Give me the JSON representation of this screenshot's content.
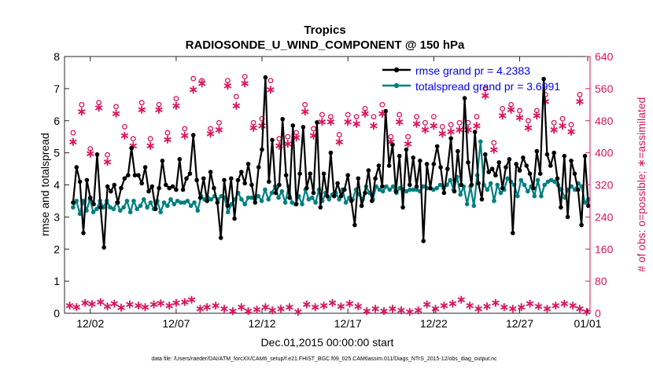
{
  "chart_data": {
    "type": "line",
    "title": "Tropics",
    "subtitle": "RADIOSONDE_U_WIND_COMPONENT @ 150 hPa",
    "xlabel": "Dec.01,2015 00:00:00 start",
    "ylabel_left": "rmse and totalspread",
    "ylabel_right": "# of obs: o=possible; ∗=assimilated",
    "footer": "data file: /Users/raeder/DAI/ATM_forcXX/CAM6_setup/f.e21.FHIST_BGC.f09_025.CAM6assim.011/Diags_NTrS_2015-12/obs_diag_output.nc",
    "xlim": [
      0.5,
      31.1
    ],
    "ylim_left": [
      0,
      8
    ],
    "ylim_right": [
      0,
      640
    ],
    "x_ticks": [
      2,
      7,
      12,
      17,
      22,
      27,
      32
    ],
    "x_tick_labels": [
      "12/02",
      "12/07",
      "12/12",
      "12/17",
      "12/22",
      "12/27",
      "01/01"
    ],
    "y_ticks_left": [
      0,
      1,
      2,
      3,
      4,
      5,
      6,
      7,
      8
    ],
    "y_ticks_right": [
      0,
      80,
      160,
      240,
      320,
      400,
      480,
      560,
      640
    ],
    "colors": {
      "rmse": "#000000",
      "spread": "#007f7f",
      "obs": "#d6155e",
      "legend_text": "#0000ff"
    },
    "series": [
      {
        "name": "rmse grand pr = 4.2383",
        "axis": "left",
        "values": [
          3.45,
          4.55,
          4.1,
          2.5,
          4.15,
          3.6,
          3.4,
          4.95,
          3.3,
          2.05,
          3.95,
          3.8,
          4.0,
          3.45,
          3.9,
          4.2,
          4.3,
          5.15,
          4.3,
          4.3,
          4.05,
          4.55,
          3.8,
          3.95,
          3.25,
          3.9,
          4.75,
          4.0,
          3.9,
          3.95,
          3.85,
          4.8,
          3.85,
          4.2,
          4.35,
          5.55,
          4.15,
          3.6,
          4.2,
          3.5,
          4.4,
          3.9,
          3.45,
          2.35,
          4.15,
          3.35,
          4.2,
          2.95,
          4.15,
          4.4,
          4.05,
          4.65,
          4.0,
          3.45,
          4.55,
          5.1,
          7.35,
          4.1,
          5.4,
          3.75,
          4.0,
          6.05,
          4.3,
          3.6,
          5.85,
          3.4,
          4.35,
          5.8,
          3.9,
          4.35,
          3.75,
          5.95,
          3.3,
          4.35,
          3.65,
          5.0,
          3.65,
          4.05,
          3.65,
          3.85,
          4.3,
          3.5,
          2.75,
          4.2,
          3.35,
          3.75,
          4.45,
          3.5,
          4.2,
          4.6,
          3.95,
          6.3,
          4.6,
          5.25,
          3.8,
          4.9,
          3.3,
          5.1,
          4.0,
          4.85,
          3.95,
          4.75,
          2.25,
          4.65,
          3.9,
          4.65,
          5.2,
          4.55,
          3.75,
          4.5,
          5.45,
          3.8,
          5.05,
          4.0,
          6.7,
          4.7,
          4.0,
          5.65,
          4.05,
          3.55,
          4.95,
          4.4,
          4.5,
          4.3,
          4.7,
          3.9,
          4.55,
          4.8,
          2.5,
          4.65,
          4.45,
          4.85,
          4.6,
          4.35,
          3.9,
          5.05,
          4.35,
          7.3,
          4.95,
          4.6,
          5.0,
          4.2,
          3.3,
          4.9,
          3.0,
          4.75,
          4.35,
          3.85,
          2.75,
          4.9,
          3.35
        ]
      },
      {
        "name": "totalspread grand pr = 3.6991",
        "axis": "left",
        "values": [
          3.3,
          3.5,
          3.1,
          3.5,
          3.2,
          3.55,
          3.15,
          3.25,
          3.5,
          3.3,
          3.5,
          3.3,
          3.25,
          3.45,
          3.2,
          3.3,
          3.5,
          3.15,
          3.5,
          3.25,
          3.35,
          3.55,
          3.3,
          3.45,
          3.25,
          3.5,
          3.15,
          3.45,
          3.35,
          3.55,
          3.4,
          3.5,
          3.45,
          3.45,
          3.5,
          3.35,
          3.45,
          3.2,
          3.65,
          3.55,
          3.6,
          3.55,
          3.65,
          3.55,
          3.65,
          3.6,
          3.15,
          3.4,
          3.55,
          3.75,
          3.55,
          3.4,
          3.6,
          3.6,
          3.55,
          3.65,
          3.5,
          3.85,
          3.55,
          3.75,
          3.95,
          3.6,
          3.8,
          3.45,
          3.95,
          3.45,
          3.4,
          3.65,
          3.4,
          3.85,
          3.55,
          3.6,
          3.45,
          3.85,
          3.5,
          3.75,
          3.55,
          3.7,
          3.75,
          3.55,
          3.85,
          3.45,
          3.6,
          3.55,
          3.85,
          3.7,
          3.55,
          3.95,
          3.75,
          3.55,
          3.95,
          3.85,
          3.8,
          3.95,
          3.85,
          3.95,
          3.75,
          3.9,
          3.85,
          3.8,
          3.85,
          3.85,
          3.85,
          3.8,
          3.95,
          3.9,
          3.9,
          3.85,
          3.9,
          4.0,
          3.9,
          4.0,
          4.15,
          3.85,
          4.25,
          3.7,
          3.95,
          3.4,
          3.95,
          3.35,
          4.3,
          5.35,
          4.0,
          3.85,
          4.05,
          3.5,
          4.0,
          3.75,
          3.85,
          4.2,
          4.1,
          4.0,
          3.65,
          4.15,
          4.0,
          3.8,
          3.95,
          3.65,
          4.15,
          3.65,
          4.0,
          4.1,
          4.15,
          4.1,
          4.0,
          3.85,
          3.6,
          3.85,
          3.95,
          3.85,
          4.05,
          3.95,
          3.45,
          3.55
        ]
      }
    ],
    "obs_possible": [
      {
        "x": 1.0,
        "y": 450
      },
      {
        "x": 1.5,
        "y": 520
      },
      {
        "x": 2.0,
        "y": 410
      },
      {
        "x": 2.5,
        "y": 525
      },
      {
        "x": 3.0,
        "y": 395
      },
      {
        "x": 3.5,
        "y": 515
      },
      {
        "x": 4.0,
        "y": 465
      },
      {
        "x": 4.5,
        "y": 435
      },
      {
        "x": 5.0,
        "y": 525
      },
      {
        "x": 5.5,
        "y": 435
      },
      {
        "x": 6.0,
        "y": 520
      },
      {
        "x": 6.5,
        "y": 450
      },
      {
        "x": 7.0,
        "y": 535
      },
      {
        "x": 7.5,
        "y": 460
      },
      {
        "x": 8.0,
        "y": 585
      },
      {
        "x": 8.5,
        "y": 580
      },
      {
        "x": 9.0,
        "y": 460
      },
      {
        "x": 9.5,
        "y": 475
      },
      {
        "x": 10.0,
        "y": 580
      },
      {
        "x": 10.5,
        "y": 540
      },
      {
        "x": 11.0,
        "y": 590
      },
      {
        "x": 11.5,
        "y": 475
      },
      {
        "x": 12.0,
        "y": 485
      },
      {
        "x": 12.5,
        "y": 580
      },
      {
        "x": 13.0,
        "y": 435
      },
      {
        "x": 13.5,
        "y": 440
      },
      {
        "x": 14.0,
        "y": 450
      },
      {
        "x": 14.5,
        "y": 520
      },
      {
        "x": 15.0,
        "y": 460
      },
      {
        "x": 15.5,
        "y": 495
      },
      {
        "x": 16.0,
        "y": 490
      },
      {
        "x": 16.5,
        "y": 445
      },
      {
        "x": 17.0,
        "y": 495
      },
      {
        "x": 17.5,
        "y": 490
      },
      {
        "x": 18.0,
        "y": 510
      },
      {
        "x": 18.5,
        "y": 490
      },
      {
        "x": 19.0,
        "y": 520
      },
      {
        "x": 19.5,
        "y": 440
      },
      {
        "x": 20.0,
        "y": 495
      },
      {
        "x": 20.5,
        "y": 440
      },
      {
        "x": 21.0,
        "y": 490
      },
      {
        "x": 21.5,
        "y": 475
      },
      {
        "x": 22.0,
        "y": 490
      },
      {
        "x": 22.5,
        "y": 465
      },
      {
        "x": 23.0,
        "y": 470
      },
      {
        "x": 23.5,
        "y": 475
      },
      {
        "x": 24.0,
        "y": 475
      },
      {
        "x": 24.5,
        "y": 490
      },
      {
        "x": 25.0,
        "y": 560
      },
      {
        "x": 25.5,
        "y": 425
      },
      {
        "x": 26.0,
        "y": 510
      },
      {
        "x": 26.5,
        "y": 520
      },
      {
        "x": 27.0,
        "y": 505
      },
      {
        "x": 27.5,
        "y": 480
      },
      {
        "x": 28.0,
        "y": 505
      },
      {
        "x": 28.5,
        "y": 545
      },
      {
        "x": 29.0,
        "y": 475
      },
      {
        "x": 29.5,
        "y": 485
      },
      {
        "x": 30.0,
        "y": 470
      },
      {
        "x": 30.5,
        "y": 545
      }
    ],
    "obs_assimilated": [
      {
        "x": 1.0,
        "y": 430
      },
      {
        "x": 1.5,
        "y": 505
      },
      {
        "x": 2.0,
        "y": 400
      },
      {
        "x": 2.5,
        "y": 515
      },
      {
        "x": 3.0,
        "y": 380
      },
      {
        "x": 3.5,
        "y": 500
      },
      {
        "x": 4.0,
        "y": 445
      },
      {
        "x": 4.5,
        "y": 420
      },
      {
        "x": 5.0,
        "y": 510
      },
      {
        "x": 5.5,
        "y": 420
      },
      {
        "x": 6.0,
        "y": 510
      },
      {
        "x": 6.5,
        "y": 435
      },
      {
        "x": 7.0,
        "y": 520
      },
      {
        "x": 7.5,
        "y": 445
      },
      {
        "x": 8.0,
        "y": 560
      },
      {
        "x": 8.5,
        "y": 575
      },
      {
        "x": 9.0,
        "y": 450
      },
      {
        "x": 9.5,
        "y": 460
      },
      {
        "x": 10.0,
        "y": 570
      },
      {
        "x": 10.5,
        "y": 520
      },
      {
        "x": 11.0,
        "y": 575
      },
      {
        "x": 11.5,
        "y": 465
      },
      {
        "x": 12.0,
        "y": 470
      },
      {
        "x": 12.5,
        "y": 560
      },
      {
        "x": 13.0,
        "y": 420
      },
      {
        "x": 13.5,
        "y": 425
      },
      {
        "x": 14.0,
        "y": 440
      },
      {
        "x": 14.5,
        "y": 505
      },
      {
        "x": 15.0,
        "y": 445
      },
      {
        "x": 15.5,
        "y": 480
      },
      {
        "x": 16.0,
        "y": 480
      },
      {
        "x": 16.5,
        "y": 430
      },
      {
        "x": 17.0,
        "y": 480
      },
      {
        "x": 17.5,
        "y": 475
      },
      {
        "x": 18.0,
        "y": 500
      },
      {
        "x": 18.5,
        "y": 470
      },
      {
        "x": 19.0,
        "y": 500
      },
      {
        "x": 19.5,
        "y": 430
      },
      {
        "x": 20.0,
        "y": 480
      },
      {
        "x": 20.5,
        "y": 425
      },
      {
        "x": 21.0,
        "y": 475
      },
      {
        "x": 21.5,
        "y": 460
      },
      {
        "x": 22.0,
        "y": 470
      },
      {
        "x": 22.5,
        "y": 450
      },
      {
        "x": 23.0,
        "y": 455
      },
      {
        "x": 23.5,
        "y": 460
      },
      {
        "x": 24.0,
        "y": 460
      },
      {
        "x": 24.5,
        "y": 470
      },
      {
        "x": 25.0,
        "y": 545
      },
      {
        "x": 25.5,
        "y": 410
      },
      {
        "x": 26.0,
        "y": 495
      },
      {
        "x": 26.5,
        "y": 510
      },
      {
        "x": 27.0,
        "y": 490
      },
      {
        "x": 27.5,
        "y": 465
      },
      {
        "x": 28.0,
        "y": 495
      },
      {
        "x": 28.5,
        "y": 530
      },
      {
        "x": 29.0,
        "y": 460
      },
      {
        "x": 29.5,
        "y": 470
      },
      {
        "x": 30.0,
        "y": 455
      },
      {
        "x": 30.5,
        "y": 530
      }
    ],
    "obs_low": [
      {
        "x": 0.8,
        "y": 22
      },
      {
        "x": 1.2,
        "y": 18
      },
      {
        "x": 1.7,
        "y": 28
      },
      {
        "x": 2.1,
        "y": 25
      },
      {
        "x": 2.6,
        "y": 30
      },
      {
        "x": 3.0,
        "y": 20
      },
      {
        "x": 3.4,
        "y": 26
      },
      {
        "x": 3.8,
        "y": 17
      },
      {
        "x": 4.3,
        "y": 24
      },
      {
        "x": 4.8,
        "y": 22
      },
      {
        "x": 5.2,
        "y": 18
      },
      {
        "x": 5.7,
        "y": 24
      },
      {
        "x": 6.1,
        "y": 27
      },
      {
        "x": 6.6,
        "y": 22
      },
      {
        "x": 7.0,
        "y": 28
      },
      {
        "x": 7.5,
        "y": 30
      },
      {
        "x": 7.9,
        "y": 36
      },
      {
        "x": 8.4,
        "y": 14
      },
      {
        "x": 8.8,
        "y": 18
      },
      {
        "x": 9.3,
        "y": 22
      },
      {
        "x": 9.8,
        "y": 14
      },
      {
        "x": 10.3,
        "y": 8
      },
      {
        "x": 10.8,
        "y": 18
      },
      {
        "x": 11.2,
        "y": 8
      },
      {
        "x": 11.7,
        "y": 12
      },
      {
        "x": 12.2,
        "y": 18
      },
      {
        "x": 12.6,
        "y": 10
      },
      {
        "x": 13.1,
        "y": 14
      },
      {
        "x": 13.6,
        "y": 18
      },
      {
        "x": 14.1,
        "y": 6
      },
      {
        "x": 14.6,
        "y": 24
      },
      {
        "x": 15.1,
        "y": 18
      },
      {
        "x": 15.6,
        "y": 22
      },
      {
        "x": 16.1,
        "y": 28
      },
      {
        "x": 16.6,
        "y": 20
      },
      {
        "x": 17.1,
        "y": 26
      },
      {
        "x": 17.6,
        "y": 20
      },
      {
        "x": 18.1,
        "y": 8
      },
      {
        "x": 18.6,
        "y": 14
      },
      {
        "x": 19.1,
        "y": 8
      },
      {
        "x": 19.6,
        "y": 14
      },
      {
        "x": 20.1,
        "y": 10
      },
      {
        "x": 20.6,
        "y": 6
      },
      {
        "x": 21.1,
        "y": 10
      },
      {
        "x": 21.6,
        "y": 24
      },
      {
        "x": 22.1,
        "y": 14
      },
      {
        "x": 22.6,
        "y": 22
      },
      {
        "x": 23.1,
        "y": 26
      },
      {
        "x": 23.6,
        "y": 36
      },
      {
        "x": 24.1,
        "y": 22
      },
      {
        "x": 24.6,
        "y": 14
      },
      {
        "x": 25.1,
        "y": 20
      },
      {
        "x": 25.6,
        "y": 28
      },
      {
        "x": 26.1,
        "y": 18
      },
      {
        "x": 26.6,
        "y": 14
      },
      {
        "x": 27.1,
        "y": 18
      },
      {
        "x": 27.6,
        "y": 26
      },
      {
        "x": 28.1,
        "y": 20
      },
      {
        "x": 28.6,
        "y": 14
      },
      {
        "x": 29.1,
        "y": 22
      },
      {
        "x": 29.6,
        "y": 26
      },
      {
        "x": 30.1,
        "y": 22
      },
      {
        "x": 30.5,
        "y": 14
      },
      {
        "x": 30.9,
        "y": 6
      }
    ]
  }
}
